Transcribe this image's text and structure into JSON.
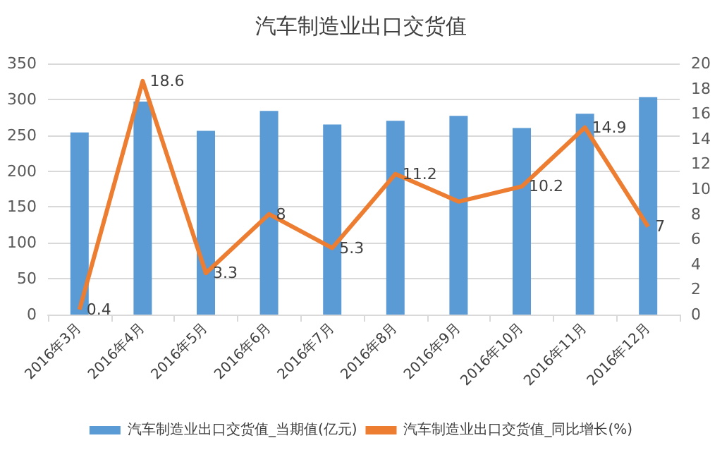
{
  "chart_data": {
    "type": "bar",
    "title": "汽车制造业出口交货值",
    "categories": [
      "2016年3月",
      "2016年4月",
      "2016年5月",
      "2016年6月",
      "2016年7月",
      "2016年8月",
      "2016年9月",
      "2016年10月",
      "2016年11月",
      "2016年12月"
    ],
    "series": [
      {
        "name": "汽车制造业出口交货值_当期值(亿元)",
        "color": "#5b9bd5",
        "values": [
          254,
          297,
          256,
          284,
          265,
          270,
          277,
          260,
          280,
          303
        ]
      },
      {
        "name": "汽车制造业出口交货值_同比增长(%)",
        "type": "line",
        "axis": "y2",
        "color": "#ed7d31",
        "values": [
          0.4,
          18.6,
          3.3,
          8,
          5.3,
          11.2,
          9,
          10.2,
          14.9,
          7
        ],
        "value_labels": [
          "0.4",
          "18.6",
          "3.3",
          "8",
          "5.3",
          "11.2",
          null,
          "10.2",
          "14.9",
          "7"
        ]
      }
    ],
    "ylim": [
      0,
      350
    ],
    "yticks": [
      0,
      50,
      100,
      150,
      200,
      250,
      300,
      350
    ],
    "y2lim": [
      0,
      20
    ],
    "y2ticks": [
      0,
      2,
      4,
      6,
      8,
      10,
      12,
      14,
      16,
      18,
      20
    ],
    "grid": "y",
    "legend": "bottom",
    "marker": "none"
  }
}
